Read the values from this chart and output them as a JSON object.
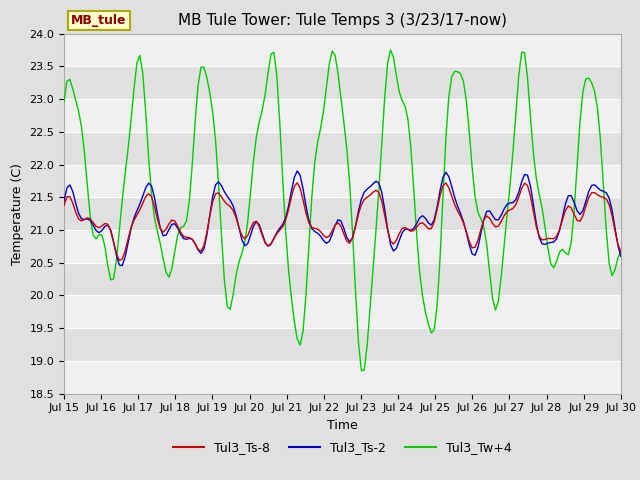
{
  "title": "MB Tule Tower: Tule Temps 3 (3/23/17-now)",
  "xlabel": "Time",
  "ylabel": "Temperature (C)",
  "ylim": [
    18.5,
    24.0
  ],
  "yticks": [
    18.5,
    19.0,
    19.5,
    20.0,
    20.5,
    21.0,
    21.5,
    22.0,
    22.5,
    23.0,
    23.5,
    24.0
  ],
  "xtick_labels": [
    "Jul 15",
    "Jul 16",
    "Jul 17",
    "Jul 18",
    "Jul 19",
    "Jul 20",
    "Jul 21",
    "Jul 22",
    "Jul 23",
    "Jul 24",
    "Jul 25",
    "Jul 26",
    "Jul 27",
    "Jul 28",
    "Jul 29",
    "Jul 30"
  ],
  "plot_bg_color": "#ffffff",
  "fig_bg_color": "#e0e0e0",
  "band_color_light": "#f0f0f0",
  "band_color_dark": "#e0e0e0",
  "line_colors": {
    "red": "#cc0000",
    "blue": "#0000cc",
    "green": "#00cc00"
  },
  "legend_box_facecolor": "#ffffcc",
  "legend_box_edgecolor": "#aaaa00",
  "legend_label_color": "#880000",
  "legend_label": "MB_tule",
  "title_fontsize": 11,
  "axis_label_fontsize": 9,
  "tick_fontsize": 8,
  "linewidth": 1.0,
  "n_days": 16,
  "pts_per_day": 12
}
